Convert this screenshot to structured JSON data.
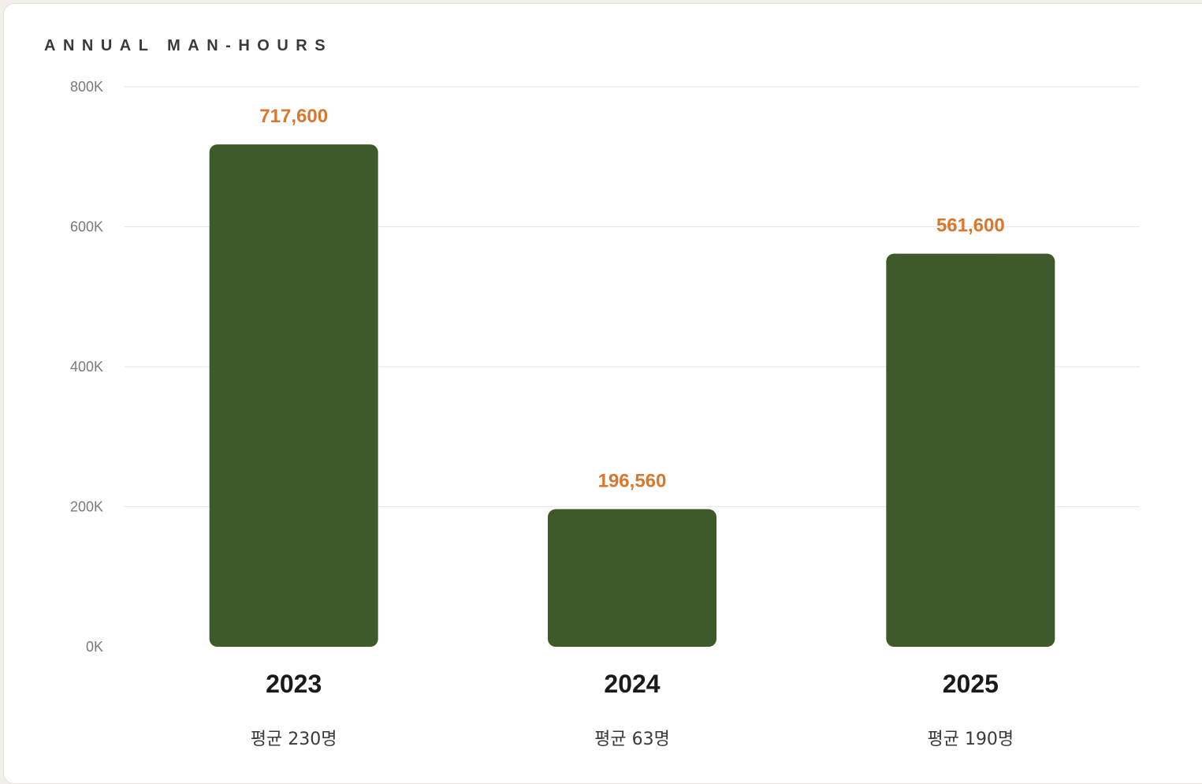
{
  "chart_data": {
    "type": "bar",
    "title": "ANNUAL MAN-HOURS",
    "categories": [
      "2023",
      "2024",
      "2025"
    ],
    "values": [
      717600,
      196560,
      561600
    ],
    "value_labels": [
      "717,600",
      "196,560",
      "561,600"
    ],
    "sublabels": [
      "평균 230명",
      "평균 63명",
      "평균 190명"
    ],
    "ylim": [
      0,
      800000
    ],
    "yticks": [
      0,
      200000,
      400000,
      600000,
      800000
    ],
    "ytick_labels": [
      "0K",
      "200K",
      "400K",
      "600K",
      "800K"
    ],
    "grid": true,
    "legend": "none",
    "colors": {
      "bar": "#3e5a2b",
      "value_label": "#d9782d",
      "grid": "#e6e6e6"
    }
  }
}
